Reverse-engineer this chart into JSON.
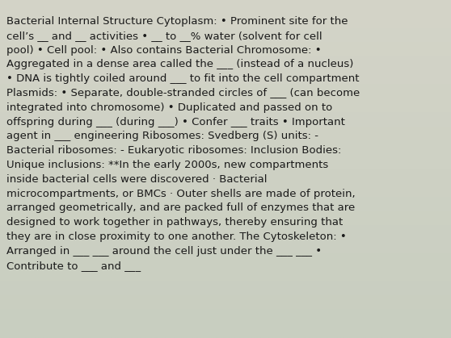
{
  "background_color_top": "#d4d4c8",
  "background_color_bottom": "#c8cec0",
  "text_color": "#1a1a1a",
  "font_family": "DejaVu Sans",
  "font_size": 9.5,
  "lines": [
    "Bacterial Internal Structure Cytoplasm: • Prominent site for the",
    "cell’s __ and __ activities • __ to __% water (solvent for cell",
    "pool) • Cell pool: • Also contains Bacterial Chromosome: •",
    "Aggregated in a dense area called the ___ (instead of a nucleus)",
    "• DNA is tightly coiled around ___ to fit into the cell compartment",
    "Plasmids: • Separate, double-stranded circles of ___ (can become",
    "integrated into chromosome) • Duplicated and passed on to",
    "offspring during ___ (during ___) • Confer ___ traits • Important",
    "agent in ___ engineering Ribosomes: Svedberg (S) units: -",
    "Bacterial ribosomes: - Eukaryotic ribosomes: Inclusion Bodies:",
    "Unique inclusions: **In the early 2000s, new compartments",
    "inside bacterial cells were discovered · Bacterial",
    "microcompartments, or BMCs · Outer shells are made of protein,",
    "arranged geometrically, and are packed full of enzymes that are",
    "designed to work together in pathways, thereby ensuring that",
    "they are in close proximity to one another. The Cytoskeleton: •",
    "Arranged in ___ ___ around the cell just under the ___ ___ •",
    "Contribute to ___ and ___"
  ]
}
